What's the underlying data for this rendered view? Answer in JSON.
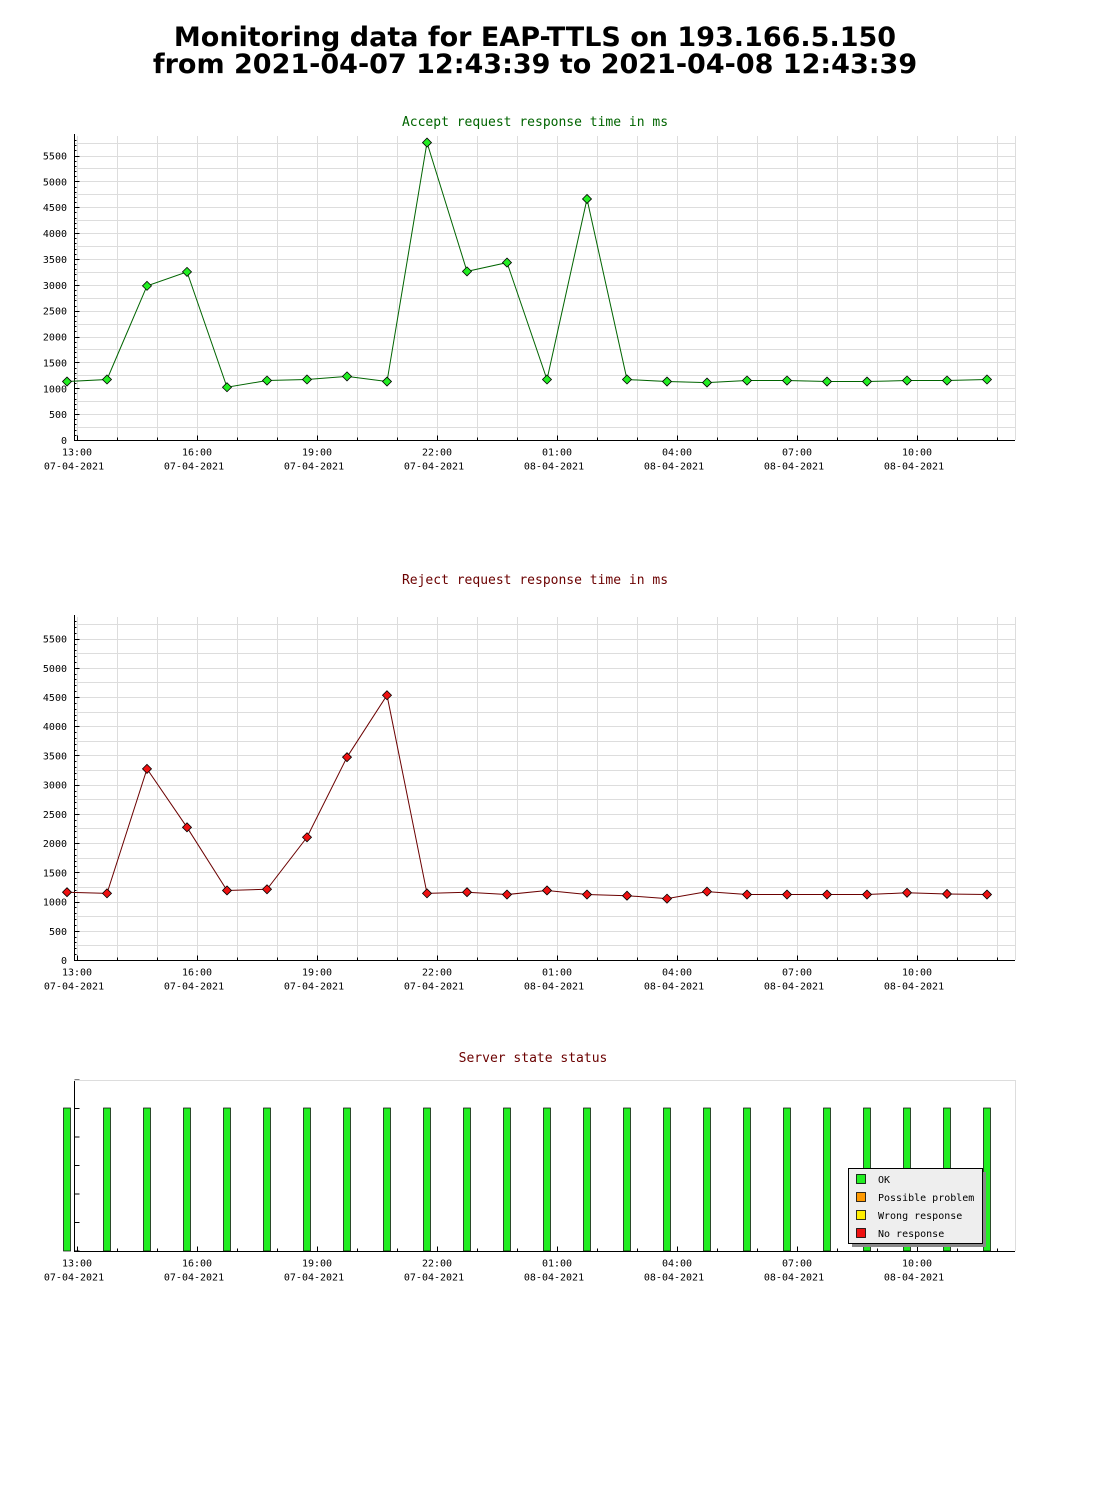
{
  "page": {
    "title_line1": "Monitoring data for EAP-TTLS on 193.166.5.150",
    "title_line2": "from 2021-04-07 12:43:39 to 2021-04-08 12:43:39"
  },
  "colors": {
    "accept_title": "#006400",
    "reject_title": "#6b0000",
    "status_title": "#6b0000",
    "ok": "#22ee22",
    "possible_problem": "#ff9900",
    "wrong_response": "#ffee00",
    "no_response": "#ee1111",
    "grid": "#dddddd",
    "accept_line": "#006400",
    "reject_line": "#6b0000"
  },
  "x_axis": {
    "ticks": [
      {
        "time": "13:00",
        "date": "07-04-2021"
      },
      {
        "time": "16:00",
        "date": "07-04-2021"
      },
      {
        "time": "19:00",
        "date": "07-04-2021"
      },
      {
        "time": "22:00",
        "date": "07-04-2021"
      },
      {
        "time": "01:00",
        "date": "08-04-2021"
      },
      {
        "time": "04:00",
        "date": "08-04-2021"
      },
      {
        "time": "07:00",
        "date": "08-04-2021"
      },
      {
        "time": "10:00",
        "date": "08-04-2021"
      }
    ]
  },
  "chart_data": [
    {
      "id": "accept",
      "type": "line",
      "title": "Accept request response time in ms",
      "x_unit": "hours after 13:00 on 07-04-2021",
      "ylim": [
        0,
        5800
      ],
      "yticks": [
        0,
        500,
        1000,
        1500,
        2000,
        2500,
        3000,
        3500,
        4000,
        4500,
        5000,
        5500
      ],
      "grid": true,
      "x": [
        -0.25,
        0.75,
        1.75,
        2.75,
        3.75,
        4.75,
        5.75,
        6.75,
        7.75,
        8.75,
        9.75,
        10.75,
        11.75,
        12.75,
        13.75,
        14.75,
        15.75,
        16.75,
        17.75,
        18.75,
        19.75,
        20.75,
        21.75,
        22.75
      ],
      "values": [
        1130,
        1170,
        2980,
        3250,
        1020,
        1150,
        1170,
        1230,
        1130,
        5750,
        3260,
        3430,
        1170,
        4660,
        1170,
        1130,
        1110,
        1150,
        1150,
        1130,
        1130,
        1150,
        1150,
        1170
      ]
    },
    {
      "id": "reject",
      "type": "line",
      "title": "Reject request response time in ms",
      "x_unit": "hours after 13:00 on 07-04-2021",
      "ylim": [
        0,
        5800
      ],
      "yticks": [
        0,
        500,
        1000,
        1500,
        2000,
        2500,
        3000,
        3500,
        4000,
        4500,
        5000,
        5500
      ],
      "grid": true,
      "x": [
        -0.25,
        0.75,
        1.75,
        2.75,
        3.75,
        4.75,
        5.75,
        6.75,
        7.75,
        8.75,
        9.75,
        10.75,
        11.75,
        12.75,
        13.75,
        14.75,
        15.75,
        16.75,
        17.75,
        18.75,
        19.75,
        20.75,
        21.75,
        22.75
      ],
      "values": [
        1160,
        1140,
        3270,
        2270,
        1190,
        1210,
        2100,
        3470,
        4530,
        1140,
        1160,
        1120,
        1190,
        1120,
        1100,
        1050,
        1170,
        1120,
        1120,
        1120,
        1120,
        1150,
        1130,
        1120
      ]
    },
    {
      "id": "status",
      "type": "bar",
      "title": "Server state status",
      "x_unit": "hours after 13:00 on 07-04-2021",
      "x": [
        -0.25,
        0.75,
        1.75,
        2.75,
        3.75,
        4.75,
        5.75,
        6.75,
        7.75,
        8.75,
        9.75,
        10.75,
        11.75,
        12.75,
        13.75,
        14.75,
        15.75,
        16.75,
        17.75,
        18.75,
        19.75,
        20.75,
        21.75,
        22.75
      ],
      "states": [
        "OK",
        "OK",
        "OK",
        "OK",
        "OK",
        "OK",
        "OK",
        "OK",
        "OK",
        "OK",
        "OK",
        "OK",
        "OK",
        "OK",
        "OK",
        "OK",
        "OK",
        "OK",
        "OK",
        "OK",
        "OK",
        "OK",
        "OK",
        "OK"
      ],
      "legend": [
        {
          "label": "OK",
          "color": "#22ee22"
        },
        {
          "label": "Possible problem",
          "color": "#ff9900"
        },
        {
          "label": "Wrong response",
          "color": "#ffee00"
        },
        {
          "label": "No response",
          "color": "#ee1111"
        }
      ],
      "legend_position": "bottom-right"
    }
  ]
}
